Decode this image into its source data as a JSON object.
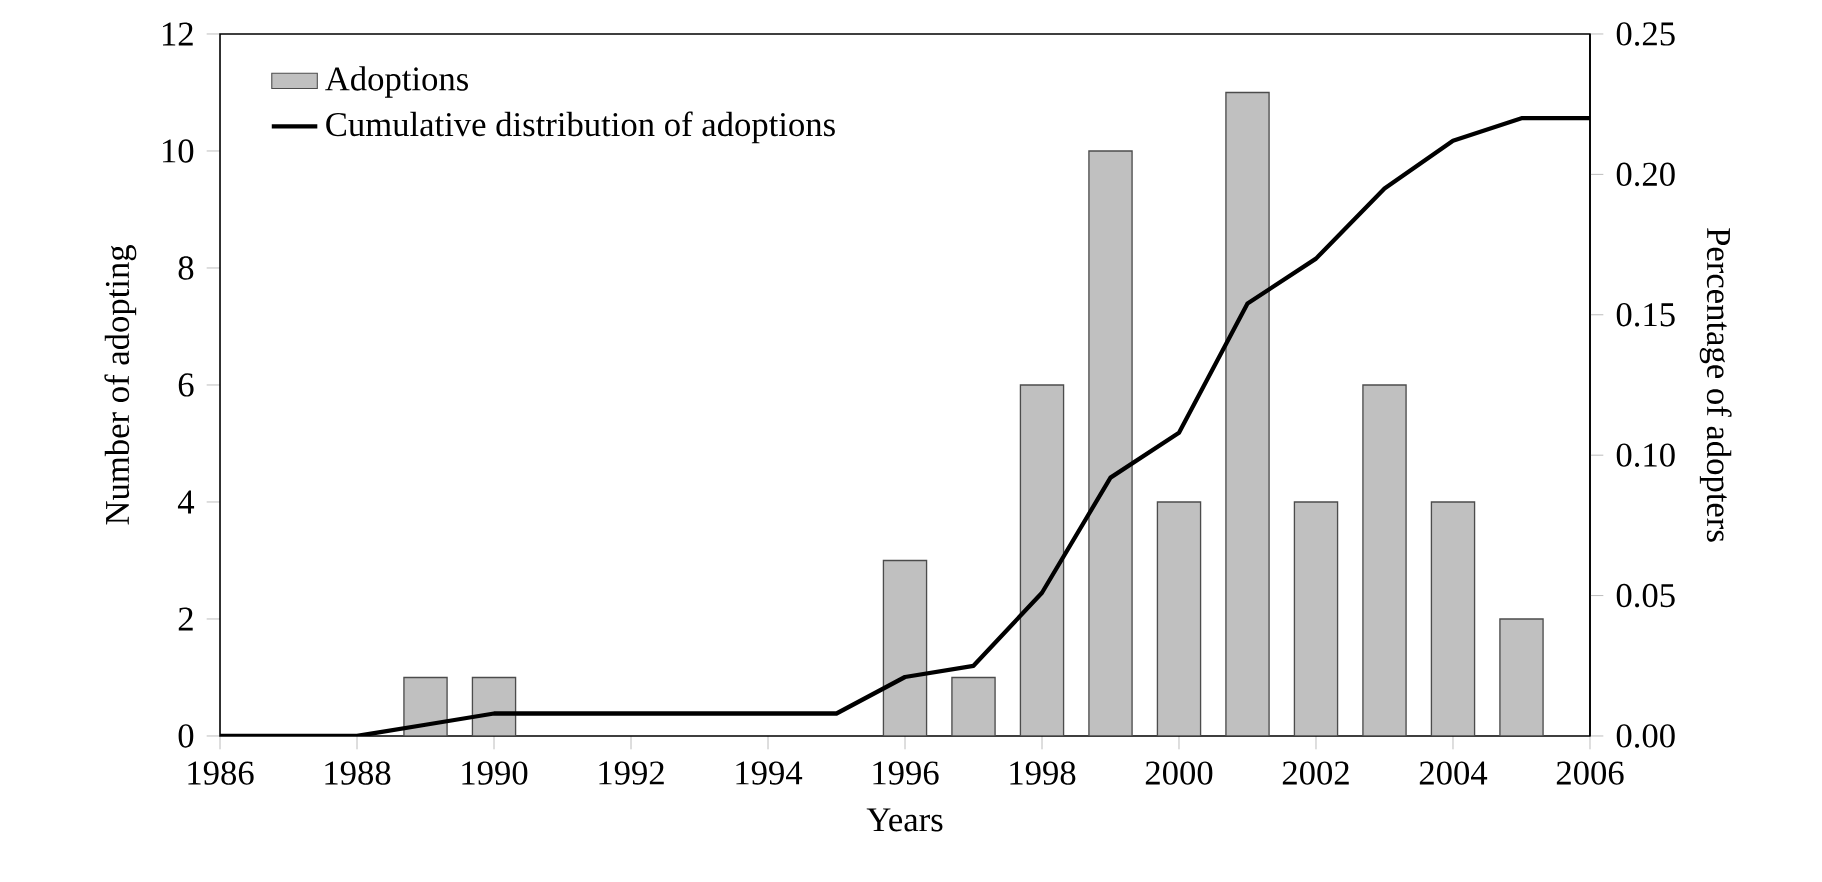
{
  "chart_data": {
    "type": "bar",
    "xlabel": "Years",
    "ylabel": "Number of adopting",
    "y2label": "Percentage of adopters",
    "xlim": [
      1986,
      2006
    ],
    "xticks": [
      1986,
      1988,
      1990,
      1992,
      1994,
      1996,
      1998,
      2000,
      2002,
      2004,
      2006
    ],
    "ylim": [
      0,
      12
    ],
    "yticks": [
      0,
      2,
      4,
      6,
      8,
      10,
      12
    ],
    "y2lim": [
      0,
      0.25
    ],
    "y2ticks": [
      {
        "value": 0,
        "label": "0.00"
      },
      {
        "value": 0.05,
        "label": "0.05"
      },
      {
        "value": 0.1,
        "label": "0.10"
      },
      {
        "value": 0.15,
        "label": "0.15"
      },
      {
        "value": 0.2,
        "label": "0.20"
      },
      {
        "value": 0.25,
        "label": "0.25"
      }
    ],
    "legend": "top left",
    "grid": false,
    "series": [
      {
        "name": "Adoptions",
        "color": "#c0c0c0",
        "x": [
          1989,
          1990,
          1996,
          1997,
          1998,
          1999,
          2000,
          2001,
          2002,
          2003,
          2004,
          2005
        ],
        "values": [
          1,
          1,
          3,
          1,
          6,
          10,
          4,
          11,
          4,
          6,
          4,
          2
        ]
      },
      {
        "name": "Cumulative distribution of adoptions",
        "type": "line",
        "axis": "y2",
        "color": "#000000",
        "x": [
          1986,
          1988,
          1989,
          1990,
          1995,
          1996,
          1997,
          1998,
          1999,
          2000,
          2001,
          2002,
          2003,
          2004,
          2005,
          2006
        ],
        "values": [
          0,
          0,
          0.004,
          0.008,
          0.008,
          0.021,
          0.025,
          0.051,
          0.092,
          0.108,
          0.154,
          0.17,
          0.195,
          0.212,
          0.22,
          0.22
        ]
      }
    ]
  }
}
